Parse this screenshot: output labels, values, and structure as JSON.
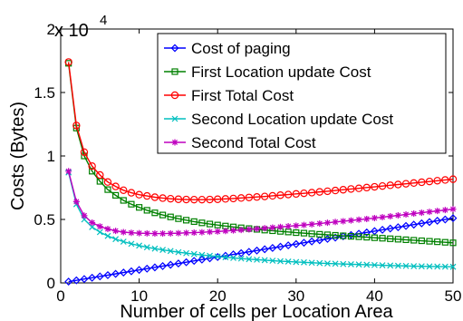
{
  "chart_data": {
    "type": "line",
    "title": "",
    "xlabel": "Number of cells per Location Area",
    "ylabel": "Costs (Bytes)",
    "y_multiplier_label": "x 10",
    "y_multiplier_exponent": "4",
    "xlim": [
      0,
      50
    ],
    "ylim": [
      0,
      20000
    ],
    "x_ticks": [
      0,
      10,
      20,
      30,
      40,
      50
    ],
    "x_tick_labels": [
      "0",
      "10",
      "20",
      "30",
      "40",
      "50"
    ],
    "y_ticks": [
      0,
      5000,
      10000,
      15000,
      20000
    ],
    "y_tick_labels": [
      "0",
      "0.5",
      "1",
      "1.5",
      "2"
    ],
    "grid": false,
    "legend_position": "top-right",
    "x": [
      1,
      2,
      3,
      4,
      5,
      6,
      7,
      8,
      9,
      10,
      11,
      12,
      13,
      14,
      15,
      16,
      17,
      18,
      19,
      20,
      21,
      22,
      23,
      24,
      25,
      26,
      27,
      28,
      29,
      30,
      31,
      32,
      33,
      34,
      35,
      36,
      37,
      38,
      39,
      40,
      41,
      42,
      43,
      44,
      45,
      46,
      47,
      48,
      49,
      50
    ],
    "series": [
      {
        "name": "Cost of paging",
        "color": "#0000ff",
        "marker": "diamond",
        "values": [
          102,
          204,
          306,
          408,
          510,
          612,
          714,
          816,
          918,
          1020,
          1122,
          1224,
          1326,
          1428,
          1530,
          1632,
          1734,
          1836,
          1938,
          2040,
          2142,
          2244,
          2346,
          2448,
          2550,
          2652,
          2754,
          2856,
          2958,
          3060,
          3162,
          3264,
          3366,
          3468,
          3570,
          3672,
          3774,
          3876,
          3978,
          4080,
          4182,
          4284,
          4386,
          4488,
          4590,
          4692,
          4794,
          4896,
          4998,
          5100
        ]
      },
      {
        "name": "First Location update Cost",
        "color": "#008000",
        "marker": "square",
        "values": [
          17300,
          12200,
          10000,
          8800,
          8000,
          7350,
          6900,
          6500,
          6200,
          5950,
          5720,
          5520,
          5350,
          5200,
          5060,
          4940,
          4830,
          4730,
          4640,
          4560,
          4480,
          4410,
          4340,
          4280,
          4220,
          4160,
          4110,
          4060,
          4010,
          3960,
          3920,
          3870,
          3830,
          3790,
          3750,
          3710,
          3670,
          3640,
          3600,
          3560,
          3520,
          3480,
          3440,
          3400,
          3360,
          3320,
          3280,
          3240,
          3200,
          3160
        ]
      },
      {
        "name": "First Total Cost",
        "color": "#ff0000",
        "marker": "circle",
        "values": [
          17400,
          12400,
          10300,
          9200,
          8500,
          7950,
          7600,
          7300,
          7100,
          6950,
          6850,
          6750,
          6680,
          6630,
          6590,
          6570,
          6560,
          6560,
          6570,
          6590,
          6620,
          6650,
          6690,
          6730,
          6770,
          6810,
          6860,
          6910,
          6960,
          7010,
          7060,
          7110,
          7170,
          7220,
          7280,
          7340,
          7400,
          7450,
          7510,
          7570,
          7630,
          7690,
          7750,
          7810,
          7870,
          7930,
          7990,
          8050,
          8110,
          8170
        ]
      },
      {
        "name": "Second Location update Cost",
        "color": "#00bfbf",
        "marker": "x",
        "values": [
          8700,
          6200,
          5000,
          4400,
          4000,
          3700,
          3450,
          3250,
          3080,
          2940,
          2810,
          2700,
          2600,
          2510,
          2420,
          2340,
          2270,
          2200,
          2140,
          2080,
          2020,
          1970,
          1920,
          1870,
          1830,
          1790,
          1750,
          1710,
          1680,
          1650,
          1620,
          1590,
          1560,
          1530,
          1510,
          1490,
          1470,
          1450,
          1430,
          1410,
          1390,
          1370,
          1350,
          1340,
          1320,
          1310,
          1300,
          1290,
          1280,
          1270
        ]
      },
      {
        "name": "Second Total Cost",
        "color": "#bf00bf",
        "marker": "star",
        "values": [
          8800,
          6400,
          5300,
          4750,
          4450,
          4250,
          4100,
          4000,
          3950,
          3920,
          3900,
          3890,
          3890,
          3900,
          3920,
          3940,
          3960,
          3990,
          4020,
          4050,
          4090,
          4130,
          4170,
          4210,
          4260,
          4310,
          4360,
          4410,
          4460,
          4510,
          4560,
          4620,
          4680,
          4740,
          4800,
          4860,
          4920,
          4980,
          5040,
          5110,
          5180,
          5250,
          5320,
          5390,
          5460,
          5530,
          5600,
          5670,
          5740,
          5810
        ]
      }
    ]
  }
}
